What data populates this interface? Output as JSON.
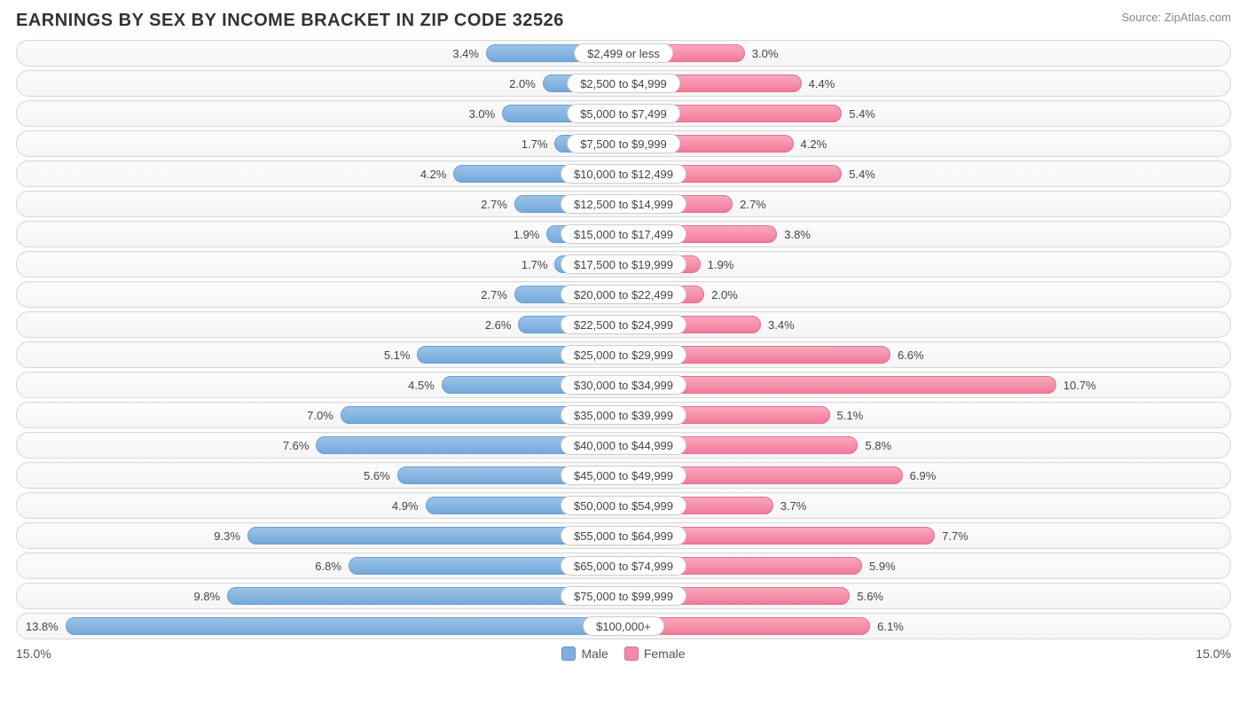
{
  "title": "EARNINGS BY SEX BY INCOME BRACKET IN ZIP CODE 32526",
  "source": "Source: ZipAtlas.com",
  "axis_max": 15.0,
  "axis_left_label": "15.0%",
  "axis_right_label": "15.0%",
  "legend": {
    "male": {
      "label": "Male",
      "color": "#7eafdd"
    },
    "female": {
      "label": "Female",
      "color": "#f48aa7"
    }
  },
  "colors": {
    "male_bar_top": "#9cc3e8",
    "male_bar_bottom": "#74a9db",
    "male_bar_border": "#6a9fd1",
    "female_bar_top": "#f9a8bd",
    "female_bar_bottom": "#f27a9b",
    "female_bar_border": "#e86f91",
    "track_border": "#d8d8d8",
    "track_bg_top": "#fcfcfc",
    "track_bg_bottom": "#f5f5f5",
    "text": "#444444",
    "title_text": "#333333",
    "source_text": "#888888"
  },
  "rows": [
    {
      "category": "$2,499 or less",
      "male": 3.4,
      "female": 3.0
    },
    {
      "category": "$2,500 to $4,999",
      "male": 2.0,
      "female": 4.4
    },
    {
      "category": "$5,000 to $7,499",
      "male": 3.0,
      "female": 5.4
    },
    {
      "category": "$7,500 to $9,999",
      "male": 1.7,
      "female": 4.2
    },
    {
      "category": "$10,000 to $12,499",
      "male": 4.2,
      "female": 5.4
    },
    {
      "category": "$12,500 to $14,999",
      "male": 2.7,
      "female": 2.7
    },
    {
      "category": "$15,000 to $17,499",
      "male": 1.9,
      "female": 3.8
    },
    {
      "category": "$17,500 to $19,999",
      "male": 1.7,
      "female": 1.9
    },
    {
      "category": "$20,000 to $22,499",
      "male": 2.7,
      "female": 2.0
    },
    {
      "category": "$22,500 to $24,999",
      "male": 2.6,
      "female": 3.4
    },
    {
      "category": "$25,000 to $29,999",
      "male": 5.1,
      "female": 6.6
    },
    {
      "category": "$30,000 to $34,999",
      "male": 4.5,
      "female": 10.7
    },
    {
      "category": "$35,000 to $39,999",
      "male": 7.0,
      "female": 5.1
    },
    {
      "category": "$40,000 to $44,999",
      "male": 7.6,
      "female": 5.8
    },
    {
      "category": "$45,000 to $49,999",
      "male": 5.6,
      "female": 6.9
    },
    {
      "category": "$50,000 to $54,999",
      "male": 4.9,
      "female": 3.7
    },
    {
      "category": "$55,000 to $64,999",
      "male": 9.3,
      "female": 7.7
    },
    {
      "category": "$65,000 to $74,999",
      "male": 6.8,
      "female": 5.9
    },
    {
      "category": "$75,000 to $99,999",
      "male": 9.8,
      "female": 5.6
    },
    {
      "category": "$100,000+",
      "male": 13.8,
      "female": 6.1
    }
  ]
}
